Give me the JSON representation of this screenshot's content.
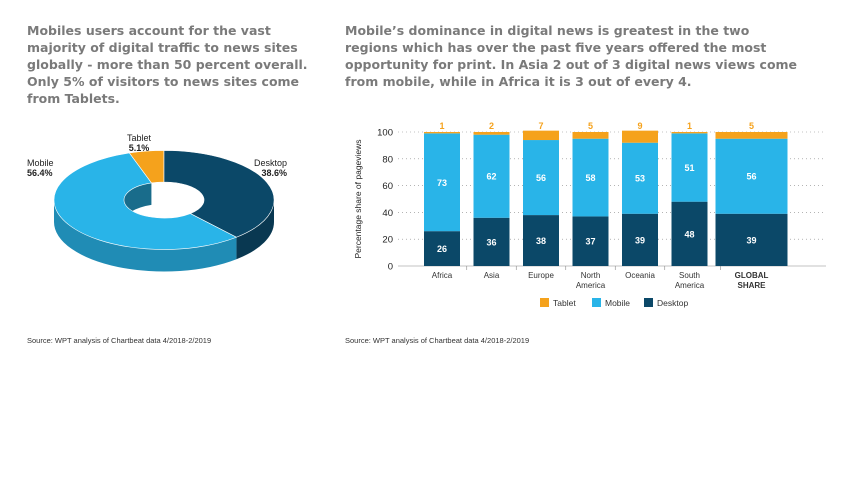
{
  "left": {
    "headline": "Mobiles users account for the vast majority of digital traffic to news sites globally - more than 50 percent overall. Only 5% of visitors to news sites come from Tablets.",
    "source": "Source: WPT analysis of Chartbeat data 4/2018-2/2019"
  },
  "right": {
    "headline": "Mobile’s dominance in digital news is greatest in the two regions which has over the past five years offered the most opportunity for print. In Asia 2 out of 3 digital news views come from mobile, while in Africa it is 3 out of every 4.",
    "source": "Source: WPT analysis of Chartbeat data 4/2018-2/2019"
  },
  "colors": {
    "tablet": "#f5a21c",
    "mobile": "#29b4e8",
    "desktop": "#0b4868"
  },
  "chart_data": [
    {
      "type": "pie",
      "title": "",
      "labels": [
        "Mobile",
        "Tablet",
        "Desktop"
      ],
      "values": [
        56.4,
        5.1,
        38.6
      ],
      "value_labels": [
        "56.4%",
        "5.1%",
        "38.6%"
      ]
    },
    {
      "type": "bar",
      "stacked": true,
      "ylabel": "Percentage share of pageviews",
      "xlabel": "",
      "ylim": [
        0,
        100
      ],
      "yticks": [
        0,
        20,
        40,
        60,
        80,
        100
      ],
      "categories": [
        "Africa",
        "Asia",
        "Europe",
        "North America",
        "Oceania",
        "South America",
        "GLOBAL SHARE"
      ],
      "category_lines": [
        [
          "Africa"
        ],
        [
          "Asia"
        ],
        [
          "Europe"
        ],
        [
          "North",
          "America"
        ],
        [
          "Oceania"
        ],
        [
          "South",
          "America"
        ],
        [
          "GLOBAL",
          "SHARE"
        ]
      ],
      "series": [
        {
          "name": "Desktop",
          "values": [
            26,
            36,
            38,
            37,
            39,
            48,
            39
          ]
        },
        {
          "name": "Mobile",
          "values": [
            73,
            62,
            56,
            58,
            53,
            51,
            56
          ]
        },
        {
          "name": "Tablet",
          "values": [
            1,
            2,
            7,
            5,
            9,
            1,
            5
          ]
        }
      ],
      "legend": [
        "Tablet",
        "Mobile",
        "Desktop"
      ],
      "legend_position": "bottom",
      "grid": "dotted horizontal"
    }
  ]
}
